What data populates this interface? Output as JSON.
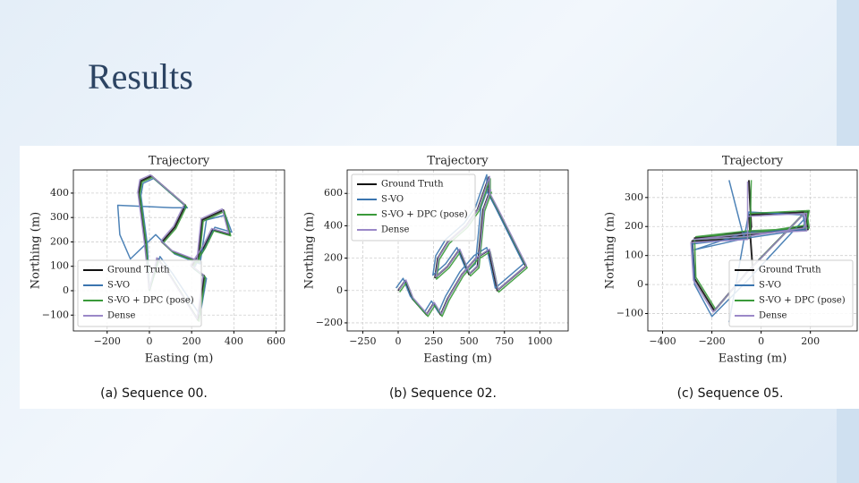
{
  "title": "Results",
  "chart_data": [
    {
      "type": "line",
      "title": "Trajectory",
      "x_label": "Easting (m)",
      "y_label": "Northing (m)",
      "caption": "(a) Sequence 00.",
      "legend": "lower left",
      "grid": true,
      "xlim": [
        -360,
        640
      ],
      "ylim": [
        -165,
        495
      ],
      "xticks": [
        {
          "value": -200,
          "label": "−200"
        },
        0,
        200,
        400,
        600
      ],
      "yticks": [
        {
          "value": -100,
          "label": "−100"
        },
        0,
        100,
        200,
        300,
        400
      ],
      "series": [
        {
          "name": "Ground Truth",
          "color": "#111111",
          "x": [
            0,
            -20,
            -50,
            -40,
            10,
            170,
            120,
            60,
            110,
            230,
            250,
            350,
            380,
            300,
            260,
            200,
            260,
            230,
            100,
            40,
            0
          ],
          "values": [
            0,
            200,
            400,
            450,
            470,
            350,
            260,
            200,
            160,
            120,
            290,
            330,
            230,
            250,
            180,
            100,
            60,
            -120,
            60,
            130,
            0
          ]
        },
        {
          "name": "S-VO",
          "color": "#3b75af",
          "x": [
            0,
            -10,
            -40,
            -30,
            20,
            180,
            110,
            -150,
            -140,
            -90,
            30,
            120,
            240,
            270,
            360,
            390,
            310,
            260,
            210,
            270,
            240,
            110,
            50,
            0
          ],
          "values": [
            0,
            190,
            390,
            440,
            460,
            340,
            340,
            350,
            230,
            130,
            230,
            150,
            110,
            290,
            310,
            240,
            260,
            170,
            90,
            50,
            -100,
            70,
            140,
            0
          ]
        },
        {
          "name": "S-VO + DPC (pose)",
          "color": "#3a9a3a",
          "x": [
            0,
            -15,
            -45,
            -35,
            15,
            175,
            125,
            65,
            115,
            235,
            255,
            355,
            385,
            305,
            265,
            205,
            265,
            235,
            105,
            45,
            0
          ],
          "values": [
            0,
            195,
            395,
            445,
            465,
            345,
            255,
            195,
            155,
            115,
            285,
            325,
            225,
            245,
            175,
            95,
            55,
            -125,
            55,
            125,
            0
          ]
        },
        {
          "name": "Dense",
          "color": "#9b88c8",
          "x": [
            0,
            -25,
            -55,
            -45,
            5,
            165,
            115,
            55,
            105,
            225,
            245,
            345,
            375,
            295,
            255,
            195,
            255,
            225,
            95,
            35,
            0
          ],
          "values": [
            5,
            205,
            405,
            455,
            475,
            355,
            265,
            205,
            165,
            125,
            295,
            335,
            235,
            255,
            185,
            105,
            65,
            -115,
            65,
            135,
            5
          ]
        }
      ]
    },
    {
      "type": "line",
      "title": "Trajectory",
      "x_label": "Easting (m)",
      "y_label": "Northing (m)",
      "caption": "(b) Sequence 02.",
      "legend": "upper left",
      "grid": true,
      "xlim": [
        -360,
        1200
      ],
      "ylim": [
        -250,
        745
      ],
      "xticks": [
        {
          "value": -250,
          "label": "−250"
        },
        0,
        250,
        500,
        750,
        1000
      ],
      "yticks": [
        {
          "value": -200,
          "label": "−200"
        },
        0,
        200,
        400,
        600
      ],
      "series": [
        {
          "name": "Ground Truth",
          "color": "#111111",
          "x": [
            0,
            50,
            100,
            150,
            200,
            250,
            300,
            350,
            450,
            550,
            640,
            700,
            900,
            700,
            640,
            640,
            560,
            480,
            350,
            280,
            260,
            350,
            430,
            500,
            560,
            600,
            650
          ],
          "values": [
            0,
            60,
            -50,
            -100,
            -150,
            -80,
            -150,
            -50,
            100,
            200,
            250,
            0,
            150,
            500,
            600,
            700,
            500,
            400,
            300,
            200,
            80,
            150,
            250,
            100,
            150,
            500,
            620
          ]
        },
        {
          "name": "S-VO",
          "color": "#3b75af",
          "x": [
            -15,
            35,
            85,
            135,
            185,
            235,
            285,
            335,
            435,
            535,
            625,
            685,
            885,
            685,
            625,
            625,
            545,
            465,
            335,
            265,
            245,
            335,
            415,
            485,
            545,
            585,
            635
          ],
          "values": [
            15,
            75,
            -35,
            -85,
            -135,
            -65,
            -135,
            -35,
            115,
            215,
            265,
            15,
            165,
            515,
            615,
            715,
            515,
            415,
            315,
            215,
            95,
            165,
            265,
            115,
            165,
            515,
            635
          ]
        },
        {
          "name": "S-VO + DPC (pose)",
          "color": "#3a9a3a",
          "x": [
            10,
            60,
            110,
            160,
            210,
            260,
            310,
            360,
            460,
            560,
            650,
            710,
            910,
            710,
            650,
            650,
            570,
            490,
            360,
            290,
            270,
            360,
            440,
            510,
            570,
            610,
            660
          ],
          "values": [
            -10,
            50,
            -60,
            -110,
            -160,
            -90,
            -160,
            -60,
            90,
            190,
            240,
            -10,
            140,
            490,
            590,
            690,
            490,
            390,
            290,
            190,
            70,
            140,
            240,
            90,
            140,
            490,
            610
          ]
        },
        {
          "name": "Dense",
          "color": "#9b88c8",
          "x": [
            5,
            55,
            105,
            155,
            205,
            255,
            305,
            355,
            455,
            555,
            645,
            705,
            905,
            705,
            645,
            645,
            565,
            485,
            355,
            285,
            265,
            355,
            435,
            505,
            565,
            605,
            655
          ],
          "values": [
            5,
            65,
            -45,
            -95,
            -145,
            -75,
            -145,
            -45,
            105,
            205,
            255,
            5,
            155,
            505,
            605,
            705,
            505,
            405,
            305,
            205,
            85,
            155,
            255,
            105,
            155,
            505,
            625
          ]
        }
      ]
    },
    {
      "type": "line",
      "title": "Trajectory",
      "x_label": "Easting (m)",
      "y_label": "Northing (m)",
      "caption": "(c) Sequence 05.",
      "legend": "lower right",
      "grid": true,
      "xlim": [
        -460,
        390
      ],
      "ylim": [
        -160,
        395
      ],
      "xticks": [
        {
          "value": -400,
          "label": "−400"
        },
        {
          "value": -200,
          "label": "−200"
        },
        0,
        200
      ],
      "yticks": [
        {
          "value": -100,
          "label": "−100"
        },
        0,
        100,
        200,
        300
      ],
      "series": [
        {
          "name": "Ground Truth",
          "color": "#111111",
          "x": [
            -50,
            -40,
            -50,
            -280,
            -270,
            -190,
            -60,
            180,
            190,
            -60,
            -270,
            -60,
            180,
            190,
            -50,
            -30
          ],
          "values": [
            360,
            200,
            160,
            150,
            20,
            -90,
            40,
            250,
            190,
            180,
            160,
            170,
            200,
            250,
            240,
            0
          ]
        },
        {
          "name": "S-VO",
          "color": "#3b75af",
          "x": [
            -130,
            -70,
            -280,
            -270,
            -200,
            -60,
            180,
            170,
            -60,
            -270,
            -60,
            180,
            170,
            -50,
            -130
          ],
          "values": [
            360,
            160,
            140,
            0,
            -110,
            10,
            230,
            190,
            180,
            120,
            160,
            190,
            240,
            250,
            -130
          ]
        },
        {
          "name": "S-VO + DPC (pose)",
          "color": "#3a9a3a",
          "x": [
            -40,
            -45,
            -270,
            -265,
            -185,
            -55,
            185,
            195,
            -55,
            -265,
            -55,
            185,
            195,
            -45
          ],
          "values": [
            360,
            165,
            155,
            25,
            -85,
            45,
            255,
            195,
            185,
            165,
            175,
            205,
            255,
            245
          ]
        },
        {
          "name": "Dense",
          "color": "#9b88c8",
          "x": [
            -55,
            -55,
            -285,
            -275,
            -195,
            -65,
            175,
            185,
            -65,
            -275,
            -65,
            175,
            185,
            -55
          ],
          "values": [
            355,
            155,
            145,
            15,
            -95,
            35,
            245,
            185,
            175,
            155,
            165,
            195,
            245,
            235
          ]
        }
      ]
    }
  ]
}
